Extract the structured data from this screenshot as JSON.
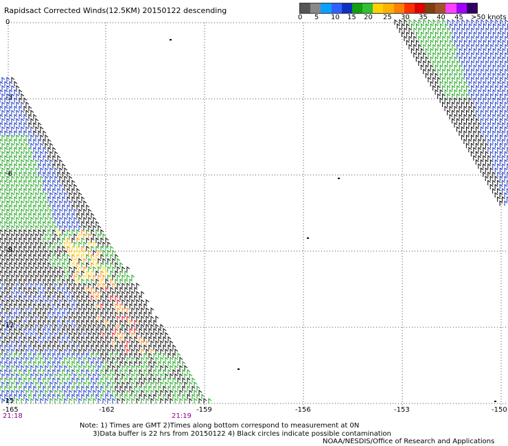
{
  "title": "Rapidsact Corrected Winds(12.5KM) 20150122 descending",
  "colorbar": {
    "colors": [
      "#555555",
      "#888888",
      "#0aa0ff",
      "#3060ff",
      "#1030c0",
      "#10a010",
      "#30c030",
      "#ffd000",
      "#ffb000",
      "#ff8000",
      "#ff3000",
      "#e00000",
      "#7b3f10",
      "#a0522d",
      "#ff40ff",
      "#a000ff",
      "#300060"
    ],
    "labels": [
      "0",
      "5",
      "10",
      "15",
      "20",
      "25",
      "30",
      "35",
      "40",
      "45",
      ">50 knots"
    ]
  },
  "latitude_labels": [
    "0",
    "-3",
    "-6",
    "-9",
    "-12",
    "-15"
  ],
  "longitude_labels": [
    "-165",
    "-162",
    "-159",
    "-156",
    "-153",
    "-150"
  ],
  "time_labels": [
    "21:18",
    "21:19"
  ],
  "notes": [
    "Note: 1) Times are GMT 2)Times along bottom correspond to measurement at 0N",
    "      3)Data buffer is 22 hrs from 20150122 4) Black circles indicate possible contamination"
  ],
  "credit": "NOAA/NESDIS/Office of Research and Applications"
}
